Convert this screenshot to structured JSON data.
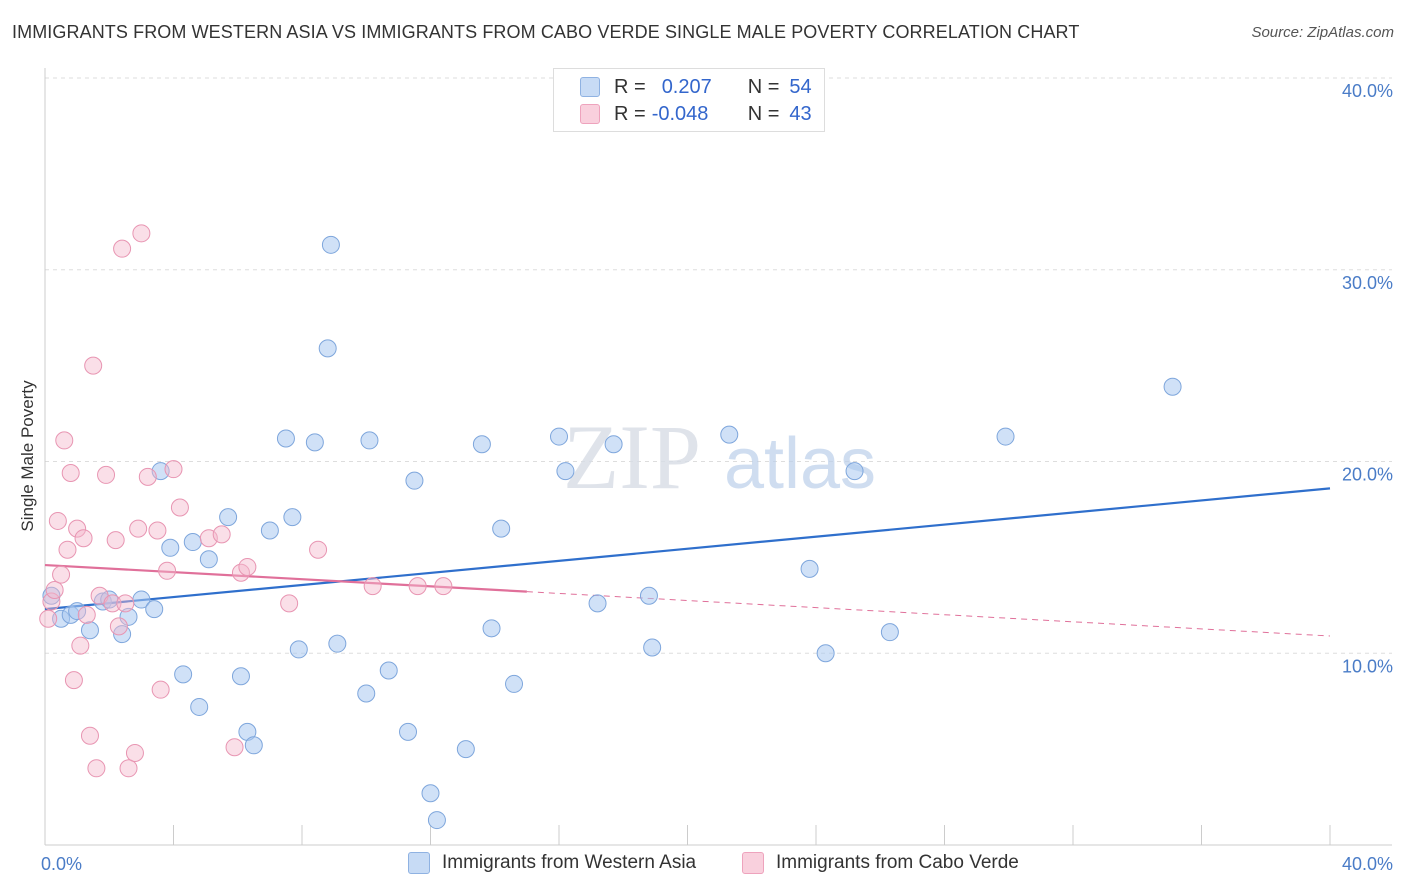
{
  "title": "IMMIGRANTS FROM WESTERN ASIA VS IMMIGRANTS FROM CABO VERDE SINGLE MALE POVERTY CORRELATION CHART",
  "source": "Source: ZipAtlas.com",
  "watermark": {
    "zip": "ZIP",
    "atlas": "atlas"
  },
  "legend": {
    "rows": [
      {
        "r_key": "R =",
        "r_value": "0.207",
        "n_key": "N =",
        "n_value": "54",
        "color": "#aac8f0"
      },
      {
        "r_key": "R =",
        "r_value": "-0.048",
        "n_key": "N =",
        "n_value": "43",
        "color": "#f5b8cc"
      }
    ]
  },
  "bottom_legend": [
    {
      "label": "Immigrants from Western Asia",
      "color": "#aac8f0"
    },
    {
      "label": "Immigrants from Cabo Verde",
      "color": "#f5b8cc"
    }
  ],
  "chart_data": {
    "type": "scatter",
    "xlabel": "",
    "ylabel": "Single Male Poverty",
    "xlim": [
      0,
      40
    ],
    "ylim": [
      0,
      40
    ],
    "x_tick_labels": [
      "0.0%",
      "40.0%"
    ],
    "y_ticks": [
      {
        "value": 10,
        "label": "10.0%"
      },
      {
        "value": 20,
        "label": "20.0%"
      },
      {
        "value": 30,
        "label": "30.0%"
      },
      {
        "value": 40,
        "label": "40.0%"
      }
    ],
    "grid": true,
    "colors": {
      "blue": "#4a7cc7",
      "blue_fill": "#aac8f0",
      "blue_line": "#2f6fcc",
      "pink_fill": "#f5b8cc",
      "pink_line": "#e0709a"
    },
    "series": [
      {
        "name": "Immigrants from Western Asia",
        "color": "#aac8f0",
        "trend": {
          "x": [
            0,
            40
          ],
          "y": [
            12.3,
            18.6
          ],
          "dashed_from": null
        },
        "points": [
          [
            0.2,
            13.0
          ],
          [
            0.5,
            11.8
          ],
          [
            0.8,
            12.0
          ],
          [
            1.0,
            12.2
          ],
          [
            1.4,
            11.2
          ],
          [
            1.8,
            12.7
          ],
          [
            2.0,
            12.8
          ],
          [
            2.4,
            11.0
          ],
          [
            2.6,
            11.9
          ],
          [
            3.0,
            12.8
          ],
          [
            3.4,
            12.3
          ],
          [
            3.6,
            19.5
          ],
          [
            3.9,
            15.5
          ],
          [
            4.3,
            8.9
          ],
          [
            4.6,
            15.8
          ],
          [
            4.8,
            7.2
          ],
          [
            5.1,
            14.9
          ],
          [
            5.7,
            17.1
          ],
          [
            6.1,
            8.8
          ],
          [
            6.3,
            5.9
          ],
          [
            6.5,
            5.2
          ],
          [
            7.0,
            16.4
          ],
          [
            7.5,
            21.2
          ],
          [
            7.7,
            17.1
          ],
          [
            7.9,
            10.2
          ],
          [
            8.4,
            21.0
          ],
          [
            8.8,
            25.9
          ],
          [
            8.9,
            31.3
          ],
          [
            9.1,
            10.5
          ],
          [
            10.0,
            7.9
          ],
          [
            10.1,
            21.1
          ],
          [
            10.7,
            9.1
          ],
          [
            11.3,
            5.9
          ],
          [
            11.5,
            19.0
          ],
          [
            12.0,
            2.7
          ],
          [
            12.2,
            1.3
          ],
          [
            13.1,
            5.0
          ],
          [
            13.6,
            20.9
          ],
          [
            13.9,
            11.3
          ],
          [
            14.2,
            16.5
          ],
          [
            14.6,
            8.4
          ],
          [
            16.0,
            21.3
          ],
          [
            16.2,
            19.5
          ],
          [
            17.2,
            12.6
          ],
          [
            17.7,
            20.9
          ],
          [
            18.8,
            13.0
          ],
          [
            18.9,
            10.3
          ],
          [
            21.3,
            21.4
          ],
          [
            23.8,
            14.4
          ],
          [
            24.3,
            10.0
          ],
          [
            25.2,
            19.5
          ],
          [
            26.3,
            11.1
          ],
          [
            29.9,
            21.3
          ],
          [
            35.1,
            23.9
          ]
        ]
      },
      {
        "name": "Immigrants from Cabo Verde",
        "color": "#f5b8cc",
        "trend": {
          "x": [
            0,
            40
          ],
          "y": [
            14.6,
            10.9
          ],
          "dashed_from": 15
        },
        "points": [
          [
            0.1,
            11.8
          ],
          [
            0.2,
            12.7
          ],
          [
            0.3,
            13.3
          ],
          [
            0.4,
            16.9
          ],
          [
            0.5,
            14.1
          ],
          [
            0.6,
            21.1
          ],
          [
            0.7,
            15.4
          ],
          [
            0.8,
            19.4
          ],
          [
            0.9,
            8.6
          ],
          [
            1.0,
            16.5
          ],
          [
            1.1,
            10.4
          ],
          [
            1.2,
            16.0
          ],
          [
            1.3,
            12.0
          ],
          [
            1.4,
            5.7
          ],
          [
            1.5,
            25.0
          ],
          [
            1.6,
            4.0
          ],
          [
            1.7,
            13.0
          ],
          [
            1.9,
            19.3
          ],
          [
            2.1,
            12.6
          ],
          [
            2.2,
            15.9
          ],
          [
            2.3,
            11.4
          ],
          [
            2.4,
            31.1
          ],
          [
            2.5,
            12.6
          ],
          [
            2.6,
            4.0
          ],
          [
            2.8,
            4.8
          ],
          [
            2.9,
            16.5
          ],
          [
            3.0,
            31.9
          ],
          [
            3.2,
            19.2
          ],
          [
            3.5,
            16.4
          ],
          [
            3.6,
            8.1
          ],
          [
            3.8,
            14.3
          ],
          [
            4.0,
            19.6
          ],
          [
            4.2,
            17.6
          ],
          [
            5.1,
            16.0
          ],
          [
            5.9,
            5.1
          ],
          [
            6.1,
            14.2
          ],
          [
            7.6,
            12.6
          ],
          [
            8.5,
            15.4
          ],
          [
            10.2,
            13.5
          ],
          [
            11.6,
            13.5
          ],
          [
            12.4,
            13.5
          ],
          [
            6.3,
            14.5
          ],
          [
            5.5,
            16.2
          ]
        ]
      }
    ]
  }
}
